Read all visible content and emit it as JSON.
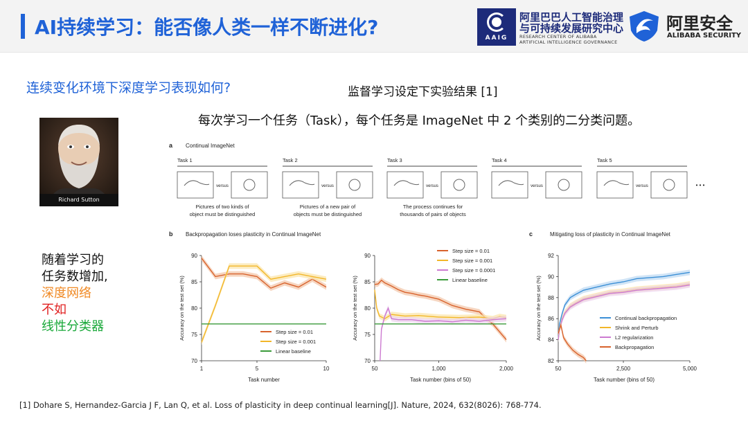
{
  "slide": {
    "title": "AI持续学习：能否像人类一样不断进化?",
    "question": "连续变化环境下深度学习表现如何?",
    "subhead": "监督学习设定下实验结果 [1]",
    "description": "每次学习一个任务（Task），每个任务是 ImageNet 中 2 个类别的二分类问题。",
    "photo_caption": "Richard Sutton",
    "note_lines": [
      "随着学习的",
      "任务数增加,",
      "深度网络",
      "不如",
      "线性分类器"
    ],
    "note_colors": [
      "#111111",
      "#111111",
      "#f08a25",
      "#e02020",
      "#18a838"
    ],
    "reference": "[1] Dohare S, Hernandez-Garcia J F, Lan Q, et al. Loss of plasticity in deep continual learning[J]. Nature, 2024, 632(8026): 768-774."
  },
  "logos": {
    "aaig_label": "AAIG",
    "aaig_cn_line1": "阿里巴巴人工智能治理",
    "aaig_cn_line2": "与可持续发展研究中心",
    "aaig_en_line1": "RESEARCH CENTER OF ALIBABA",
    "aaig_en_line2": "ARTIFICIAL INTELLIGENCE GOVERNANCE",
    "alibaba_security_cn": "阿里安全",
    "alibaba_security_en": "ALIBABA SECURITY"
  },
  "figure": {
    "panel_a": {
      "letter": "a",
      "title": "Continual ImageNet",
      "versus": "versus",
      "ellipsis": "• • •",
      "tasks": [
        {
          "label": "Task 1",
          "left_icon": "alligator-icon",
          "right_icon": "guitar-icon"
        },
        {
          "label": "Task 2",
          "left_icon": "gamepad-icon",
          "right_icon": "fish-icon"
        },
        {
          "label": "Task 3",
          "left_icon": "bowtie-icon",
          "right_icon": "bison-icon"
        },
        {
          "label": "Task 4",
          "left_icon": "harp-icon",
          "right_icon": "koala-icon"
        },
        {
          "label": "Task 5",
          "left_icon": "go-kart-icon",
          "right_icon": "lizard-icon"
        }
      ],
      "captions": [
        [
          "Pictures of two kinds of",
          "object must be distinguished"
        ],
        [
          "Pictures of a new pair of",
          "objects must be distinguished"
        ],
        [
          "The process continues for",
          "thousands of pairs of objects"
        ]
      ]
    },
    "panel_b": {
      "letter": "b",
      "title": "Backpropagation loses plasticity in Continual ImageNet"
    },
    "panel_c": {
      "letter": "c",
      "title": "Mitigating loss of plasticity in Continual ImageNet"
    },
    "colors": {
      "orange": "#d8622c",
      "yellow": "#f2b629",
      "pink": "#cc7ad0",
      "green": "#3a9a3a",
      "blue": "#3b8fd6",
      "band_orange": "#f2c4a6",
      "band_yellow": "#fbe4a6",
      "band_pink": "#ecd2ee",
      "band_blue": "#bcd8f2"
    }
  },
  "chart_data": [
    {
      "type": "line",
      "xlabel": "Task number",
      "ylabel": "Accuracy on the test set (%)",
      "xlim": [
        1,
        10
      ],
      "ylim": [
        70,
        90
      ],
      "xticks": [
        1,
        5,
        10
      ],
      "yticks": [
        70,
        75,
        80,
        85,
        90
      ],
      "legend_position": "bottom-right",
      "series": [
        {
          "name": "Step size = 0.01",
          "color": "#d8622c",
          "x": [
            1,
            2,
            3,
            4,
            5,
            6,
            7,
            8,
            9,
            10
          ],
          "y": [
            89.5,
            86.0,
            86.5,
            86.5,
            86.0,
            83.8,
            84.8,
            84.0,
            85.5,
            84.0
          ]
        },
        {
          "name": "Step size = 0.001",
          "color": "#f2b629",
          "x": [
            1,
            2,
            3,
            4,
            5,
            6,
            7,
            8,
            9,
            10
          ],
          "y": [
            73.5,
            80.5,
            88.0,
            88.0,
            88.0,
            85.5,
            86.0,
            86.5,
            86.0,
            85.5
          ]
        },
        {
          "name": "Linear baseline",
          "color": "#3a9a3a",
          "x": [
            1,
            10
          ],
          "y": [
            77.0,
            77.0
          ]
        }
      ]
    },
    {
      "type": "line",
      "xlabel": "Task number (bins of 50)",
      "ylabel": "Accuracy on the test set (%)",
      "xlim": [
        50,
        2000
      ],
      "ylim": [
        70,
        90
      ],
      "xticks": [
        50,
        1000,
        2000
      ],
      "xtick_labels": [
        "50",
        "1,000",
        "2,000"
      ],
      "yticks": [
        70,
        75,
        80,
        85,
        90
      ],
      "legend_position": "top-right",
      "series": [
        {
          "name": "Step size = 0.01",
          "color": "#d8622c",
          "x": [
            50,
            100,
            150,
            200,
            300,
            400,
            500,
            600,
            700,
            800,
            900,
            1000,
            1200,
            1400,
            1600,
            1700,
            1800,
            1900,
            2000
          ],
          "y": [
            84.5,
            84.6,
            85.3,
            84.8,
            84.2,
            83.5,
            83.0,
            82.8,
            82.5,
            82.3,
            82.0,
            81.7,
            80.5,
            79.8,
            79.3,
            78.0,
            77.0,
            75.5,
            74.0
          ]
        },
        {
          "name": "Step size = 0.001",
          "color": "#f2b629",
          "x": [
            50,
            80,
            120,
            200,
            300,
            500,
            700,
            1000,
            1300,
            1600,
            1800,
            1900,
            2000
          ],
          "y": [
            83.5,
            80.0,
            78.5,
            78.0,
            78.8,
            78.5,
            78.6,
            78.3,
            78.2,
            78.3,
            78.0,
            78.4,
            78.2
          ]
        },
        {
          "name": "Step size = 0.0001",
          "color": "#cc7ad0",
          "x": [
            130,
            150,
            200,
            250,
            300,
            400,
            600,
            800,
            1000,
            1200,
            1400,
            1600,
            1800,
            2000
          ],
          "y": [
            70.0,
            76.0,
            78.5,
            80.0,
            78.0,
            77.8,
            77.8,
            77.5,
            77.6,
            77.4,
            77.7,
            77.5,
            77.8,
            78.0
          ]
        },
        {
          "name": "Linear baseline",
          "color": "#3a9a3a",
          "x": [
            50,
            2000
          ],
          "y": [
            77.0,
            77.0
          ]
        }
      ]
    },
    {
      "type": "line",
      "xlabel": "Task number (bins of 50)",
      "ylabel": "Accuracy on the test set (%)",
      "xlim": [
        50,
        5000
      ],
      "ylim": [
        82,
        92
      ],
      "xticks": [
        50,
        2500,
        5000
      ],
      "xtick_labels": [
        "50",
        "2,500",
        "5,000"
      ],
      "yticks": [
        82,
        84,
        86,
        88,
        90,
        92
      ],
      "legend_position": "bottom-right",
      "series": [
        {
          "name": "Continual backpropagation",
          "color": "#3b8fd6",
          "x": [
            50,
            100,
            200,
            300,
            500,
            700,
            1000,
            1500,
            2000,
            2500,
            3000,
            3500,
            4000,
            4500,
            5000
          ],
          "y": [
            84.0,
            85.5,
            86.5,
            87.3,
            88.0,
            88.3,
            88.7,
            89.0,
            89.3,
            89.5,
            89.8,
            89.9,
            90.0,
            90.2,
            90.4
          ]
        },
        {
          "name": "Shrink and Perturb",
          "color": "#f2b629",
          "x": [
            50,
            100,
            200,
            300,
            500,
            700,
            1000,
            1500,
            2000,
            2500,
            3000,
            3500,
            4000,
            4500,
            5000
          ],
          "y": [
            84.0,
            85.0,
            86.0,
            86.6,
            87.2,
            87.5,
            87.9,
            88.2,
            88.5,
            88.6,
            88.8,
            88.9,
            89.0,
            89.1,
            89.3
          ]
        },
        {
          "name": "L2 regularization",
          "color": "#cc7ad0",
          "x": [
            50,
            100,
            200,
            300,
            500,
            700,
            1000,
            1500,
            2000,
            2500,
            3000,
            3500,
            4000,
            4500,
            5000
          ],
          "y": [
            84.0,
            85.0,
            85.9,
            86.5,
            87.1,
            87.4,
            87.8,
            88.1,
            88.4,
            88.5,
            88.7,
            88.8,
            88.9,
            89.0,
            89.2
          ]
        },
        {
          "name": "Backpropagation",
          "color": "#d8622c",
          "x": [
            50,
            150,
            250,
            400,
            600,
            800,
            1000,
            1100
          ],
          "y": [
            84.6,
            85.4,
            84.2,
            83.6,
            83.0,
            82.6,
            82.3,
            82.0
          ]
        }
      ]
    }
  ]
}
